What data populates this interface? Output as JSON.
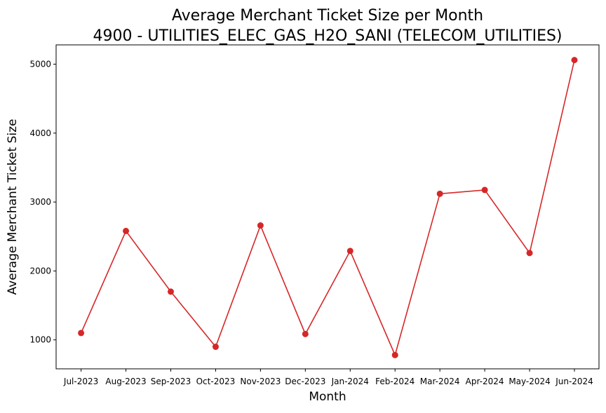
{
  "chart_data": {
    "type": "line",
    "title": "Average Merchant Ticket Size per Month",
    "subtitle": "4900 - UTILITIES_ELEC_GAS_H2O_SANI (TELECOM_UTILITIES)",
    "xlabel": "Month",
    "ylabel": "Average Merchant Ticket Size",
    "categories": [
      "Jul-2023",
      "Aug-2023",
      "Sep-2023",
      "Oct-2023",
      "Nov-2023",
      "Dec-2023",
      "Jan-2024",
      "Feb-2024",
      "Mar-2024",
      "Apr-2024",
      "May-2024",
      "Jun-2024"
    ],
    "series": [
      {
        "values": [
          1100,
          2580,
          1700,
          900,
          2660,
          1085,
          2290,
          780,
          3120,
          3175,
          2260,
          5060
        ],
        "color": "#d62728"
      }
    ],
    "yticks": [
      1000,
      2000,
      3000,
      4000,
      5000
    ],
    "ylim": [
      580,
      5280
    ],
    "grid": false,
    "legend": "none"
  }
}
